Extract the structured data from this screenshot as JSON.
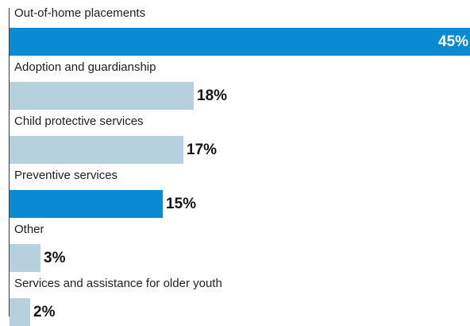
{
  "chart_data": {
    "type": "bar",
    "orientation": "horizontal",
    "categories": [
      "Out-of-home placements",
      "Adoption and guardianship",
      "Child protective services",
      "Preventive services",
      "Other",
      "Services and assistance for older youth"
    ],
    "values": [
      45,
      18,
      17,
      15,
      3,
      2
    ],
    "value_labels": [
      "45%",
      "18%",
      "17%",
      "15%",
      "3%",
      "2%"
    ],
    "highlight": [
      true,
      false,
      false,
      true,
      false,
      false
    ],
    "xlim": [
      0,
      45
    ],
    "grid": false,
    "legend": "none"
  },
  "colors": {
    "highlight": "#0a8ad2",
    "default": "#b7d0de",
    "axis": "#3a3a3a"
  }
}
